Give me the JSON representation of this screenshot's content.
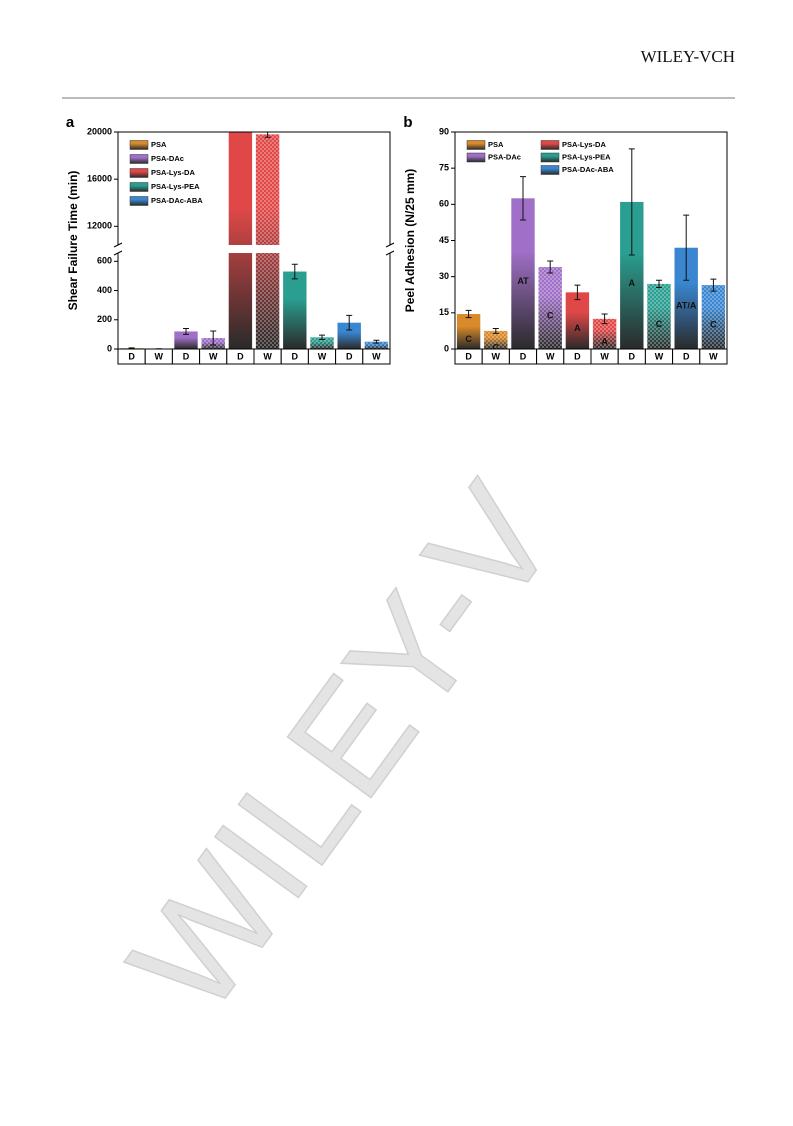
{
  "header": {
    "publisher": "WILEY-VCH"
  },
  "watermark": "WILEY-V",
  "chart_data": [
    {
      "type": "bar",
      "panel_label": "a",
      "ylabel": "Shear Failure Time (min)",
      "categories": [
        "D",
        "W"
      ],
      "ylim": [
        0,
        20000
      ],
      "ybreak": [
        650,
        10500
      ],
      "yticks": [
        0,
        200,
        400,
        600,
        12000,
        16000,
        20000
      ],
      "legend_columns": 1,
      "series": [
        {
          "name": "PSA",
          "color": "#d98a2b",
          "values": [
            5,
            1
          ],
          "errors": [
            3,
            1
          ]
        },
        {
          "name": "PSA-DAc",
          "color": "#a070c8",
          "values": [
            120,
            75
          ],
          "errors": [
            20,
            48
          ]
        },
        {
          "name": "PSA-Lys-DA",
          "color": "#e04848",
          "values": [
            20000,
            19800
          ],
          "errors": [
            null,
            250
          ]
        },
        {
          "name": "PSA-Lys-PEA",
          "color": "#2a9e90",
          "values": [
            530,
            80
          ],
          "errors": [
            50,
            15
          ]
        },
        {
          "name": "PSA-DAc-ABA",
          "color": "#3a86d0",
          "values": [
            180,
            50
          ],
          "errors": [
            50,
            10
          ]
        }
      ]
    },
    {
      "type": "bar",
      "panel_label": "b",
      "ylabel": "Peel Adhesion (N/25 mm)",
      "categories": [
        "D",
        "W"
      ],
      "ylim": [
        0,
        90
      ],
      "yticks": [
        0,
        15,
        30,
        45,
        60,
        75,
        90
      ],
      "legend_columns": 2,
      "series": [
        {
          "name": "PSA",
          "color": "#d98a2b",
          "values": [
            14.5,
            7.5
          ],
          "errors": [
            1.5,
            1
          ],
          "bar_labels": [
            "C",
            "C"
          ]
        },
        {
          "name": "PSA-DAc",
          "color": "#a070c8",
          "values": [
            62.5,
            34
          ],
          "errors": [
            9,
            2.5
          ],
          "bar_labels": [
            "AT",
            "C"
          ]
        },
        {
          "name": "PSA-Lys-DA",
          "color": "#e04848",
          "values": [
            23.5,
            12.5
          ],
          "errors": [
            3,
            2
          ],
          "bar_labels": [
            "A",
            "A"
          ]
        },
        {
          "name": "PSA-Lys-PEA",
          "color": "#2a9e90",
          "values": [
            61,
            27
          ],
          "errors": [
            22,
            1.5
          ],
          "bar_labels": [
            "A",
            "C"
          ]
        },
        {
          "name": "PSA-DAc-ABA",
          "color": "#3a86d0",
          "values": [
            42,
            26.5
          ],
          "errors": [
            13.5,
            2.5
          ],
          "bar_labels": [
            "AT/A",
            "C"
          ]
        }
      ]
    }
  ]
}
